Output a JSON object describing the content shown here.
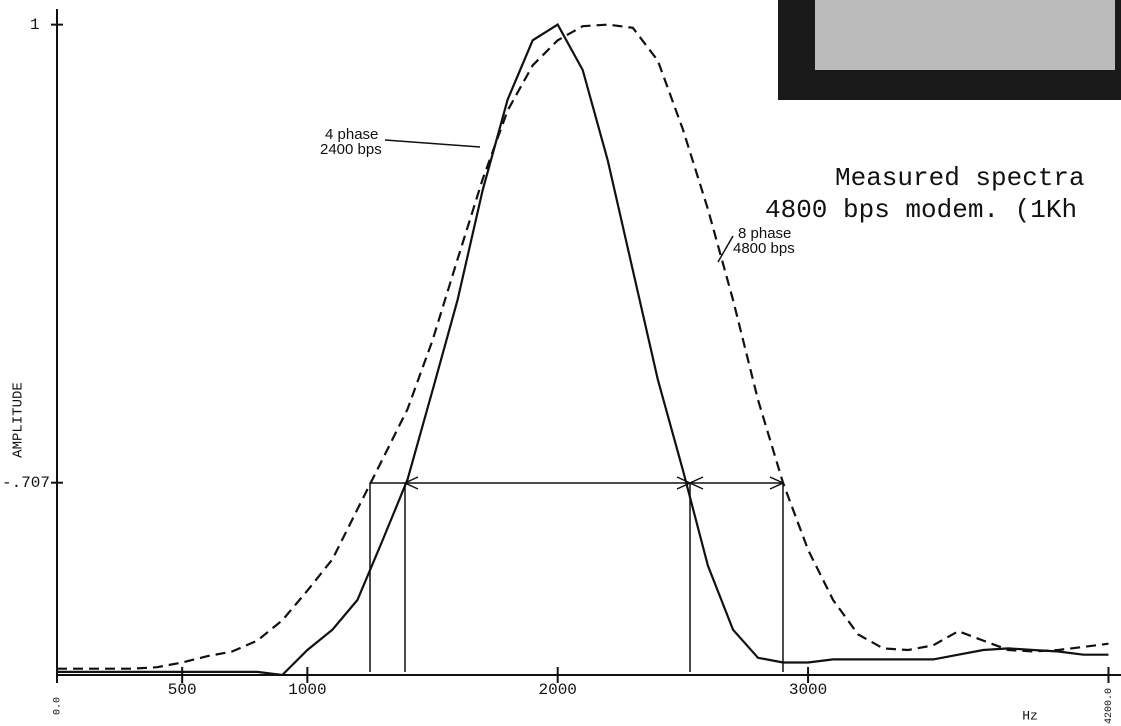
{
  "chart_data": {
    "type": "line",
    "title": [
      "Measured spectra",
      "4800 bps modem. (1Kh"
    ],
    "y_label": "AMPLITUDE",
    "x_label": "Hz",
    "x": [
      0,
      100,
      200,
      300,
      400,
      500,
      600,
      700,
      800,
      900,
      1000,
      1100,
      1200,
      1300,
      1400,
      1500,
      1600,
      1700,
      1800,
      1900,
      2000,
      2100,
      2200,
      2300,
      2400,
      2500,
      2600,
      2700,
      2800,
      2900,
      3000,
      3100,
      3200,
      3300,
      3400,
      3500,
      3600,
      3700,
      3800,
      3900,
      4000,
      4100,
      4200
    ],
    "series": [
      {
        "name": [
          "4 phase",
          "2400 bps"
        ],
        "color": "#111111",
        "dash": false,
        "values": [
          0.586,
          0.586,
          0.586,
          0.586,
          0.586,
          0.586,
          0.586,
          0.586,
          0.586,
          0.584,
          0.6,
          0.613,
          0.632,
          0.67,
          0.709,
          0.766,
          0.824,
          0.894,
          0.952,
          0.99,
          1.0,
          0.971,
          0.913,
          0.843,
          0.773,
          0.715,
          0.654,
          0.613,
          0.595,
          0.592,
          0.592,
          0.594,
          0.594,
          0.594,
          0.594,
          0.594,
          0.597,
          0.6,
          0.601,
          0.6,
          0.599,
          0.597,
          0.597
        ]
      },
      {
        "name": [
          "8 phase",
          "4800 bps"
        ],
        "color": "#111111",
        "dash": true,
        "values": [
          0.588,
          0.588,
          0.588,
          0.588,
          0.589,
          0.592,
          0.596,
          0.599,
          0.606,
          0.619,
          0.638,
          0.658,
          0.69,
          0.722,
          0.754,
          0.798,
          0.85,
          0.901,
          0.945,
          0.974,
          0.99,
          0.999,
          1.0,
          0.998,
          0.977,
          0.933,
          0.882,
          0.824,
          0.76,
          0.707,
          0.664,
          0.632,
          0.61,
          0.601,
          0.6,
          0.603,
          0.612,
          0.606,
          0.6,
          0.599,
          0.6,
          0.602,
          0.604
        ]
      }
    ],
    "xlim": [
      0,
      4250
    ],
    "ylim": [
      0.584,
      1.01
    ],
    "xticks": [
      {
        "value": 0,
        "label": "0.0"
      },
      500,
      1000,
      2000,
      3000,
      {
        "value": 4200,
        "label": "4200.0"
      }
    ],
    "yticks": [
      1,
      {
        "value": 0.707,
        "label": "-.707"
      }
    ]
  }
}
